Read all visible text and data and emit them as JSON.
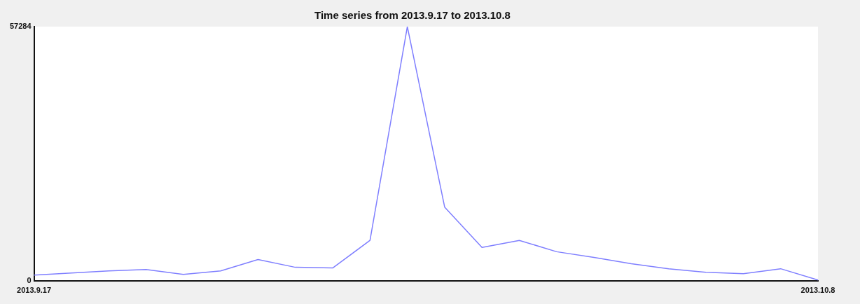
{
  "chart_data": {
    "type": "line",
    "title": "Time series from 2013.9.17 to 2013.10.8",
    "categories": [
      "2013.9.17",
      null,
      null,
      null,
      null,
      null,
      null,
      null,
      null,
      null,
      null,
      null,
      null,
      null,
      null,
      null,
      null,
      null,
      null,
      null,
      null,
      "2013.10.8"
    ],
    "series": [
      {
        "color": "#7f7fff",
        "values": [
          1280,
          1750,
          2230,
          2550,
          1440,
          2230,
          4790,
          3030,
          2870,
          9100,
          57284,
          16600,
          7500,
          9100,
          6540,
          5270,
          3830,
          2710,
          1920,
          1600,
          2710,
          160
        ]
      }
    ],
    "ylim": [
      0,
      57284
    ],
    "yticks": [
      0,
      57284
    ],
    "grid": false,
    "legend": false,
    "marker": "none",
    "line_style": "solid"
  }
}
